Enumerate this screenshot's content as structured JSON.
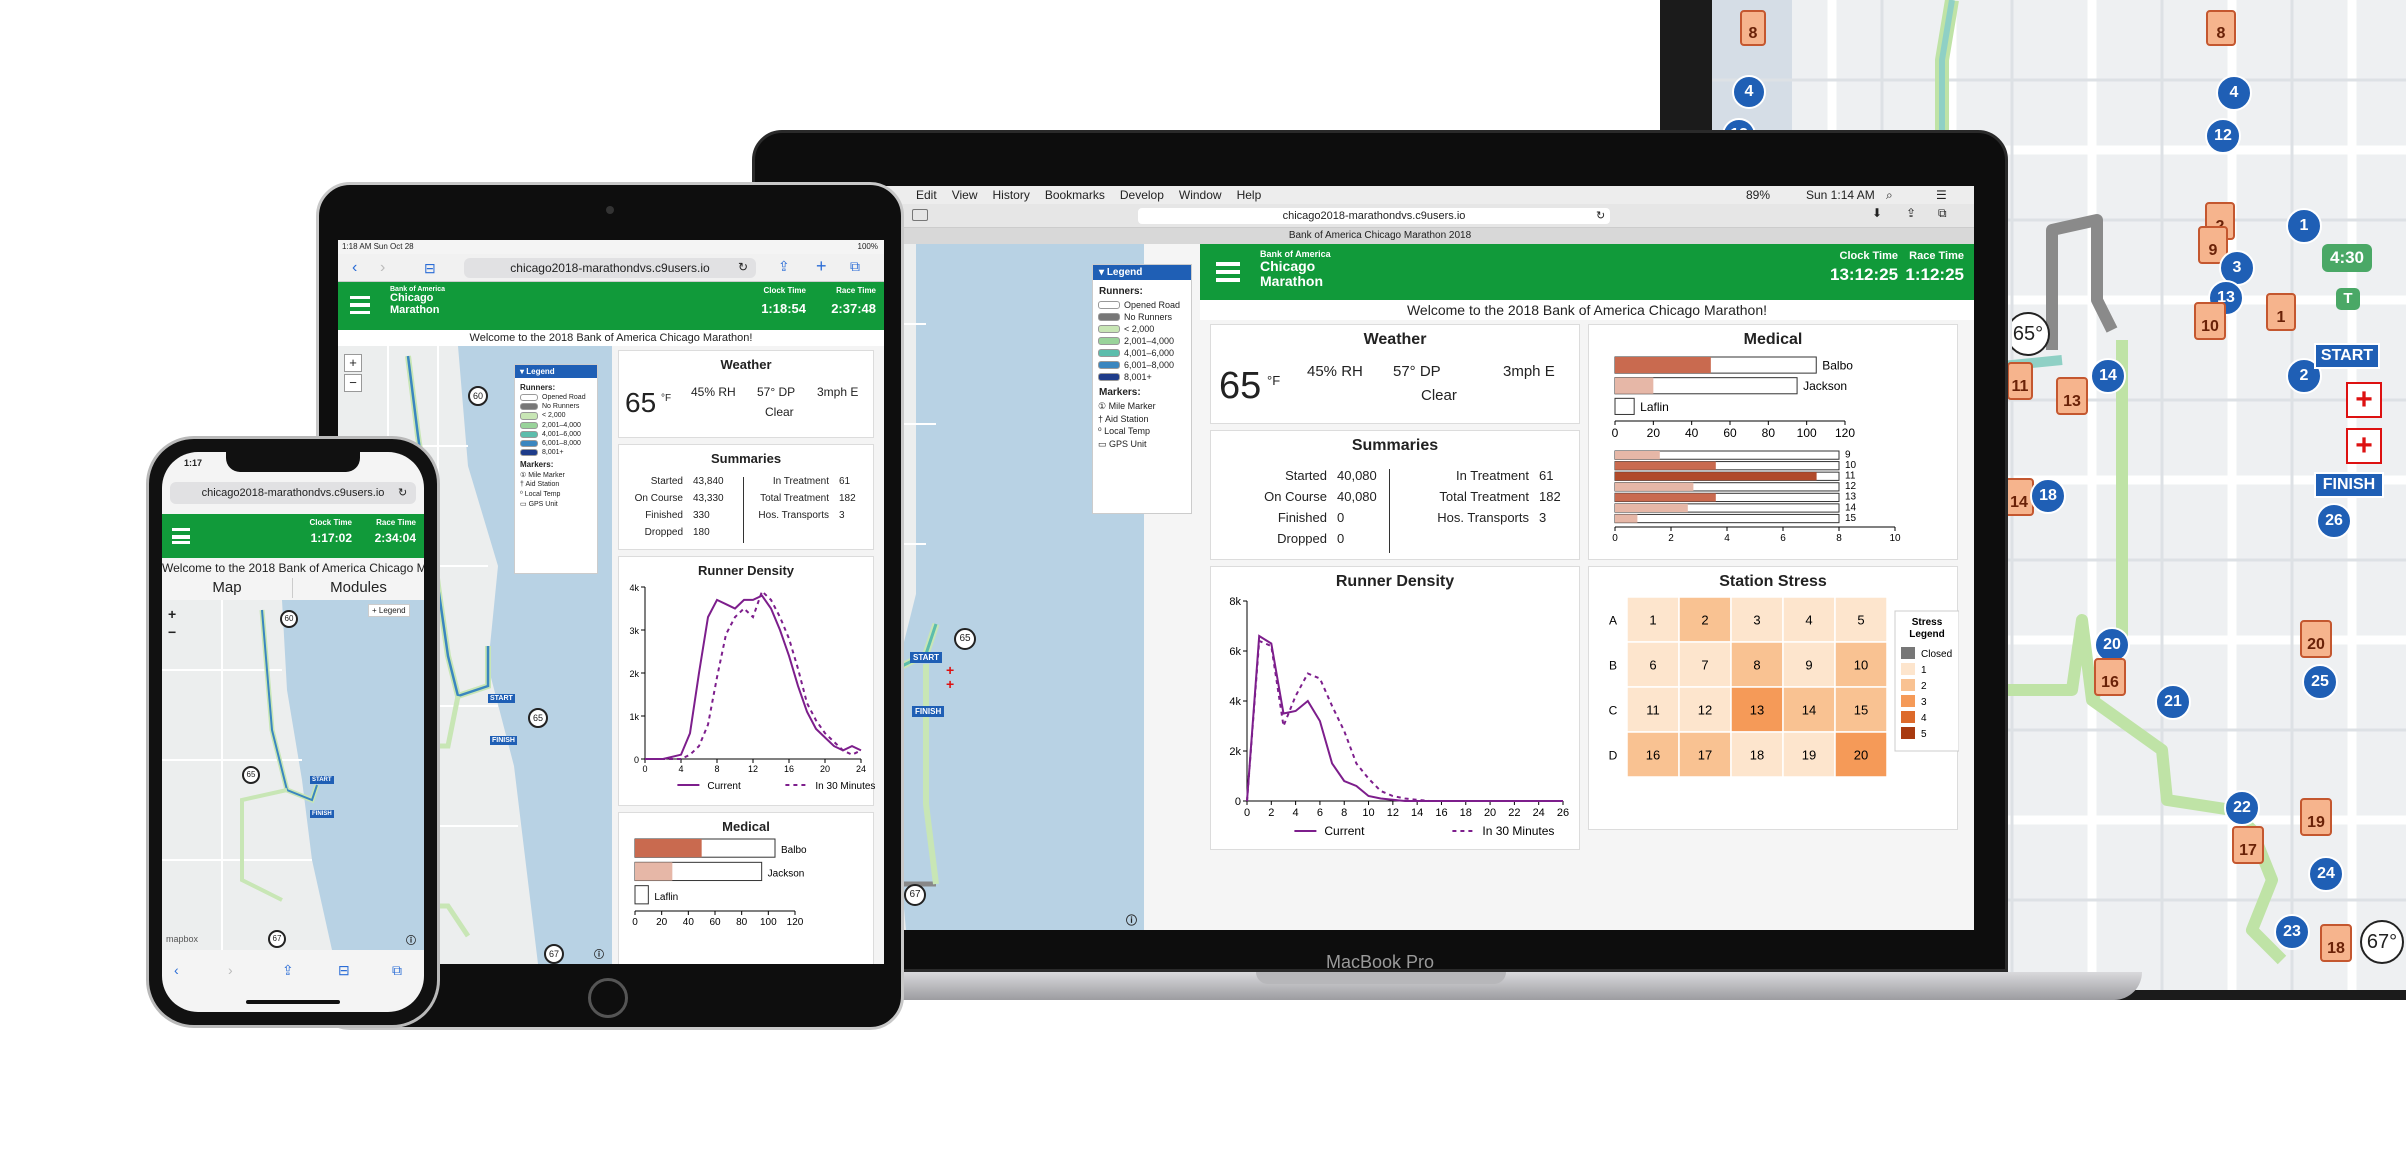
{
  "site": {
    "url": "chicago2018-marathondvs.c9users.io",
    "tab_title": "Bank of America Chicago Marathon 2018",
    "welcome": "Welcome to the 2018 Bank of America Chicago Marathon!",
    "logo_line1": "Bank of America",
    "logo_line2": "Chicago",
    "logo_line3": "Marathon"
  },
  "mac": {
    "menu": [
      "Edit",
      "View",
      "History",
      "Bookmarks",
      "Develop",
      "Window",
      "Help"
    ],
    "battery": "89%",
    "clock": "Sun 1:14 AM",
    "brand": "MacBook Pro",
    "clock_time_label": "Clock Time",
    "clock_time": "13:12:25",
    "race_time_label": "Race Time",
    "race_time": "1:12:25",
    "weather": {
      "title": "Weather",
      "temp": "65",
      "unit": "°F",
      "rh": "45% RH",
      "dp": "57° DP",
      "wind": "3mph E",
      "cond": "Clear"
    },
    "summaries": {
      "title": "Summaries",
      "left": [
        [
          "Started",
          "40,080"
        ],
        [
          "On Course",
          "40,080"
        ],
        [
          "Finished",
          "0"
        ],
        [
          "Dropped",
          "0"
        ]
      ],
      "right": [
        [
          "In Treatment",
          "61"
        ],
        [
          "Total Treatment",
          "182"
        ],
        [
          "Hos. Transports",
          "3"
        ]
      ]
    },
    "density_title": "Runner Density",
    "medical_title": "Medical",
    "stress_title": "Station Stress"
  },
  "ipad": {
    "status_time": "1:18 AM  Sun Oct 28",
    "battery": "100%",
    "clock_time_label": "Clock Time",
    "clock_time": "1:18:54",
    "race_time_label": "Race Time",
    "race_time": "2:37:48",
    "weather": {
      "title": "Weather",
      "temp": "65",
      "unit": "°F",
      "rh": "45% RH",
      "dp": "57° DP",
      "wind": "3mph E",
      "cond": "Clear"
    },
    "summaries": {
      "title": "Summaries",
      "left": [
        [
          "Started",
          "43,840"
        ],
        [
          "On Course",
          "43,330"
        ],
        [
          "Finished",
          "330"
        ],
        [
          "Dropped",
          "180"
        ]
      ],
      "right": [
        [
          "In Treatment",
          "61"
        ],
        [
          "Total Treatment",
          "182"
        ],
        [
          "Hos. Transports",
          "3"
        ]
      ]
    },
    "density_title": "Runner Density",
    "medical_title": "Medical"
  },
  "iphone": {
    "status_time": "1:17",
    "clock_time_label": "Clock Time",
    "clock_time": "1:17:02",
    "race_time_label": "Race Time",
    "race_time": "2:34:04",
    "welcome": "Welcome to the 2018 Bank of America Chicago M",
    "tab_map": "Map",
    "tab_modules": "Modules",
    "legend_btn": "+ Legend",
    "mapbox": "mapbox"
  },
  "legend": {
    "title": "Legend",
    "runners_label": "Runners:",
    "runners": [
      "Opened Road",
      "No Runners",
      "< 2,000",
      "2,001–4,000",
      "4,001–6,000",
      "6,001–8,000",
      "8,001+"
    ],
    "runner_colors": [
      "#ffffff",
      "#777777",
      "#c8e6b5",
      "#99d39a",
      "#5cbdac",
      "#3a86bf",
      "#1e3c8a"
    ],
    "markers_label": "Markers:",
    "markers": [
      "Mile Marker",
      "Aid Station",
      "Local Temp",
      "GPS Unit"
    ]
  },
  "map_labels": {
    "start": "START",
    "finish": "FINISH",
    "mile": "Mile",
    "gps_time": "4:30",
    "gps_t": "T"
  },
  "big_map": {
    "miles": [
      "8",
      "4",
      "12",
      "1",
      "3",
      "2",
      "14",
      "13",
      "26",
      "18",
      "20",
      "25",
      "21",
      "22",
      "24",
      "23",
      "19",
      "17",
      "16",
      "9",
      "10"
    ],
    "temp_a": "65°",
    "temp_b": "67°"
  },
  "chart_data": [
    {
      "type": "line",
      "title": "Runner Density",
      "context": "desktop",
      "x": [
        0,
        1,
        2,
        3,
        4,
        5,
        6,
        7,
        8,
        9,
        10,
        11,
        12,
        13,
        14,
        15,
        16,
        17,
        18,
        19,
        20,
        21,
        22,
        23,
        24,
        25,
        26
      ],
      "series": [
        {
          "name": "Current",
          "values": [
            0,
            6600,
            6300,
            3500,
            3600,
            4000,
            3200,
            1500,
            800,
            600,
            200,
            100,
            50,
            0,
            0,
            0,
            0,
            0,
            0,
            0,
            0,
            0,
            0,
            0,
            0,
            0,
            0
          ],
          "color": "#7d1e8c",
          "dash": ""
        },
        {
          "name": "In 30 Minutes",
          "values": [
            0,
            6400,
            6200,
            3000,
            4200,
            5100,
            4900,
            3800,
            2800,
            1500,
            900,
            400,
            200,
            100,
            50,
            0,
            0,
            0,
            0,
            0,
            0,
            0,
            0,
            0,
            0,
            0,
            0
          ],
          "color": "#7d1e8c",
          "dash": "4,4"
        }
      ],
      "yticks": [
        "0",
        "2k",
        "4k",
        "6k",
        "8k"
      ],
      "xticks": [
        "0",
        "2",
        "4",
        "6",
        "8",
        "10",
        "12",
        "14",
        "16",
        "18",
        "20",
        "22",
        "24",
        "26"
      ],
      "ylim": [
        0,
        8000
      ]
    },
    {
      "type": "line",
      "title": "Runner Density",
      "context": "tablet",
      "x": [
        0,
        2,
        4,
        5,
        6,
        7,
        8,
        9,
        10,
        11,
        12,
        13,
        14,
        15,
        16,
        17,
        18,
        19,
        20,
        21,
        22,
        23,
        24
      ],
      "series": [
        {
          "name": "Current",
          "values": [
            0,
            0,
            100,
            600,
            2000,
            3300,
            3700,
            3600,
            3500,
            3700,
            3700,
            3800,
            3500,
            3000,
            2400,
            1700,
            1100,
            700,
            500,
            300,
            200,
            300,
            200
          ],
          "color": "#7d1e8c",
          "dash": ""
        },
        {
          "name": "In 30 Minutes",
          "values": [
            0,
            0,
            0,
            100,
            300,
            800,
            1900,
            2900,
            3300,
            3500,
            3300,
            3900,
            3700,
            3300,
            2800,
            2100,
            1300,
            900,
            600,
            400,
            200,
            100,
            200
          ],
          "color": "#7d1e8c",
          "dash": "4,4"
        }
      ],
      "yticks": [
        "0",
        "1k",
        "2k",
        "3k",
        "4k"
      ],
      "xticks": [
        "0",
        "4",
        "8",
        "12",
        "16",
        "20",
        "24"
      ],
      "ylim": [
        0,
        4000
      ]
    },
    {
      "type": "bar",
      "title": "Medical",
      "context": "desktop-top",
      "categories": [
        "Balbo",
        "Jackson",
        "Laflin"
      ],
      "values": [
        50,
        20,
        0
      ],
      "capacity": [
        105,
        95,
        10
      ],
      "ticks": [
        "0",
        "20",
        "40",
        "60",
        "80",
        "100",
        "120"
      ],
      "xlim": [
        0,
        120
      ]
    },
    {
      "type": "bar",
      "title": "Medical",
      "context": "desktop-bottom",
      "categories": [
        "9",
        "10",
        "11",
        "12",
        "13",
        "14",
        "15"
      ],
      "values": [
        1.6,
        3.6,
        7.2,
        2.8,
        3.6,
        2.6,
        0.8
      ],
      "capacity": [
        8,
        8,
        8,
        8,
        8,
        8,
        8
      ],
      "ticks": [
        "0",
        "2",
        "4",
        "6",
        "8",
        "10"
      ],
      "xlim": [
        0,
        10
      ]
    },
    {
      "type": "heatmap",
      "title": "Station Stress",
      "rows": [
        "A",
        "B",
        "C",
        "D"
      ],
      "cells": [
        [
          "1",
          "2",
          "3",
          "4",
          "5"
        ],
        [
          "6",
          "7",
          "8",
          "9",
          "10"
        ],
        [
          "11",
          "12",
          "13",
          "14",
          "15"
        ],
        [
          "16",
          "17",
          "18",
          "19",
          "20"
        ]
      ],
      "levels": [
        [
          1,
          2,
          1,
          1,
          1
        ],
        [
          1,
          1,
          2,
          1,
          2
        ],
        [
          1,
          1,
          3,
          2,
          2
        ],
        [
          2,
          2,
          1,
          1,
          3
        ]
      ],
      "legend_title": "Stress Legend",
      "legend": [
        "Closed",
        "1",
        "2",
        "3",
        "4",
        "5"
      ],
      "legend_colors": [
        "#777777",
        "#fde5cd",
        "#f9c292",
        "#f59a58",
        "#dd6a2b",
        "#a83a10"
      ]
    },
    {
      "type": "bar",
      "title": "Medical",
      "context": "tablet",
      "categories": [
        "Balbo",
        "Jackson",
        "Laflin"
      ],
      "values": [
        50,
        28,
        0
      ],
      "capacity": [
        105,
        95,
        10
      ],
      "ticks": [
        "0",
        "20",
        "40",
        "60",
        "80",
        "100",
        "120"
      ],
      "xlim": [
        0,
        120
      ]
    }
  ]
}
